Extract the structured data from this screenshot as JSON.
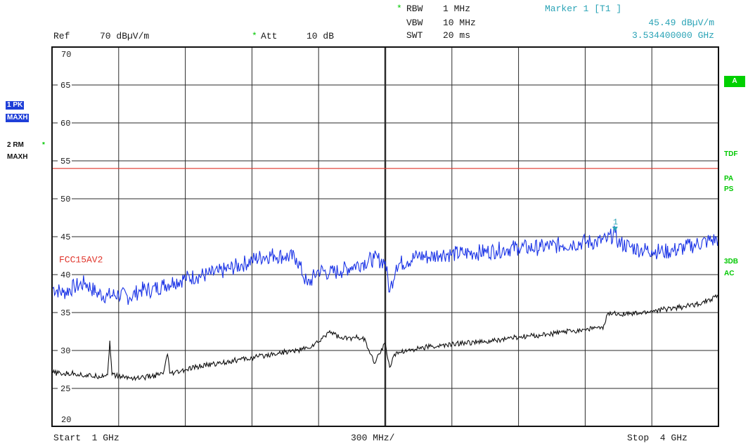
{
  "header": {
    "rbw_label": "RBW",
    "rbw_value": "1 MHz",
    "vbw_label": "VBW",
    "vbw_value": "10 MHz",
    "swt_label": "SWT",
    "swt_value": "20 ms",
    "ref_label": "Ref",
    "ref_value": "70 dBµV/m",
    "att_label": "Att",
    "att_value": "10 dB",
    "marker_title": "Marker 1 [T1 ]",
    "marker_level": "45.49 dBµV/m",
    "marker_freq": "3.534400000 GHz",
    "star": "*"
  },
  "left_panel": {
    "trace1_badge": "1 PK",
    "trace1_mode": "MAXH",
    "trace2_label": "2 RM",
    "trace2_mode": "MAXH",
    "star": "*"
  },
  "right_panel": {
    "box_a": "A",
    "tdf": "TDF",
    "pa": "PA",
    "ps": "PS",
    "db3": "3DB",
    "ac": "AC"
  },
  "footer": {
    "start": "Start  1 GHz",
    "span_div": "300 MHz/",
    "stop": "Stop  4 GHz"
  },
  "colors": {
    "trace1": "#1a33e6",
    "trace2": "#111111",
    "limit_line": "#e0352b",
    "grid": "#2a2a2a",
    "marker": "#2aa3b6",
    "status_green": "#00c800"
  },
  "chart_data": {
    "type": "line",
    "title": "",
    "xlabel": "",
    "ylabel": "",
    "xlim": [
      1,
      4
    ],
    "ylim": [
      20,
      70
    ],
    "x_unit": "GHz",
    "y_unit": "dBµV/m",
    "y_ticks": [
      20,
      25,
      30,
      35,
      40,
      45,
      50,
      55,
      60,
      65,
      70
    ],
    "y_tick_labels": [
      "20",
      "25",
      "30",
      "35",
      "40",
      "45",
      "50",
      "55",
      "60",
      "65",
      "70"
    ],
    "grid": true,
    "limit_line": {
      "name": "FCC15AV2",
      "value": 54
    },
    "marker": {
      "label": "1",
      "x": 3.5344,
      "y": 45.49
    },
    "series": [
      {
        "x": [
          1.0,
          1.05,
          1.1,
          1.15,
          1.2,
          1.25,
          1.3,
          1.35,
          1.4,
          1.45,
          1.5,
          1.55,
          1.6,
          1.65,
          1.7,
          1.75,
          1.8,
          1.85,
          1.9,
          1.95,
          2.0,
          2.05,
          2.1,
          2.15,
          2.2,
          2.25,
          2.3,
          2.35,
          2.4,
          2.45,
          2.5,
          2.52,
          2.55,
          2.6,
          2.65,
          2.7,
          2.75,
          2.8,
          2.85,
          2.9,
          2.95,
          3.0,
          3.05,
          3.1,
          3.15,
          3.2,
          3.25,
          3.3,
          3.35,
          3.4,
          3.45,
          3.5,
          3.5344,
          3.55,
          3.6,
          3.65,
          3.7,
          3.75,
          3.8,
          3.85,
          3.9,
          3.95,
          4.0
        ],
        "values": [
          38.3,
          37.6,
          38.4,
          38.9,
          37.6,
          37.2,
          37.4,
          37.0,
          38.0,
          38.0,
          38.6,
          39.1,
          39.5,
          39.8,
          40.0,
          40.3,
          40.8,
          41.3,
          41.9,
          42.4,
          42.6,
          42.4,
          42.2,
          38.6,
          40.6,
          40.2,
          40.5,
          41.1,
          41.6,
          42.1,
          41.7,
          37.7,
          41.3,
          41.8,
          42.5,
          42.3,
          42.8,
          42.7,
          42.8,
          42.9,
          43.0,
          43.2,
          43.4,
          43.6,
          43.5,
          43.6,
          43.8,
          43.9,
          44.1,
          44.3,
          44.3,
          44.6,
          45.49,
          44.2,
          43.7,
          43.3,
          43.2,
          43.0,
          43.2,
          43.6,
          44.0,
          44.4,
          44.7
        ]
      },
      {
        "x": [
          1.0,
          1.05,
          1.1,
          1.15,
          1.2,
          1.25,
          1.26,
          1.27,
          1.3,
          1.35,
          1.4,
          1.45,
          1.5,
          1.52,
          1.53,
          1.55,
          1.6,
          1.65,
          1.7,
          1.75,
          1.8,
          1.85,
          1.9,
          1.95,
          2.0,
          2.05,
          2.1,
          2.15,
          2.2,
          2.25,
          2.3,
          2.35,
          2.4,
          2.45,
          2.5,
          2.52,
          2.55,
          2.6,
          2.65,
          2.7,
          2.75,
          2.8,
          2.85,
          2.9,
          2.95,
          3.0,
          3.05,
          3.1,
          3.15,
          3.2,
          3.25,
          3.3,
          3.35,
          3.4,
          3.45,
          3.48,
          3.5,
          3.55,
          3.6,
          3.65,
          3.7,
          3.75,
          3.8,
          3.85,
          3.9,
          3.95,
          4.0
        ],
        "values": [
          27.1,
          26.9,
          27.0,
          26.7,
          26.6,
          26.8,
          31.3,
          26.8,
          26.6,
          26.4,
          26.4,
          26.6,
          26.9,
          29.5,
          27.0,
          27.0,
          27.4,
          27.8,
          28.1,
          28.3,
          28.6,
          28.8,
          29.0,
          29.3,
          29.6,
          29.8,
          30.0,
          30.3,
          31.1,
          32.6,
          31.6,
          31.6,
          31.8,
          28.3,
          31.0,
          27.8,
          29.8,
          30.0,
          30.3,
          30.5,
          30.6,
          30.8,
          31.0,
          31.1,
          31.1,
          31.3,
          31.6,
          31.7,
          31.9,
          32.0,
          32.2,
          32.4,
          32.6,
          32.8,
          33.0,
          32.8,
          34.8,
          34.9,
          34.8,
          34.9,
          35.2,
          35.4,
          35.6,
          35.8,
          36.1,
          36.6,
          37.2
        ]
      }
    ]
  }
}
